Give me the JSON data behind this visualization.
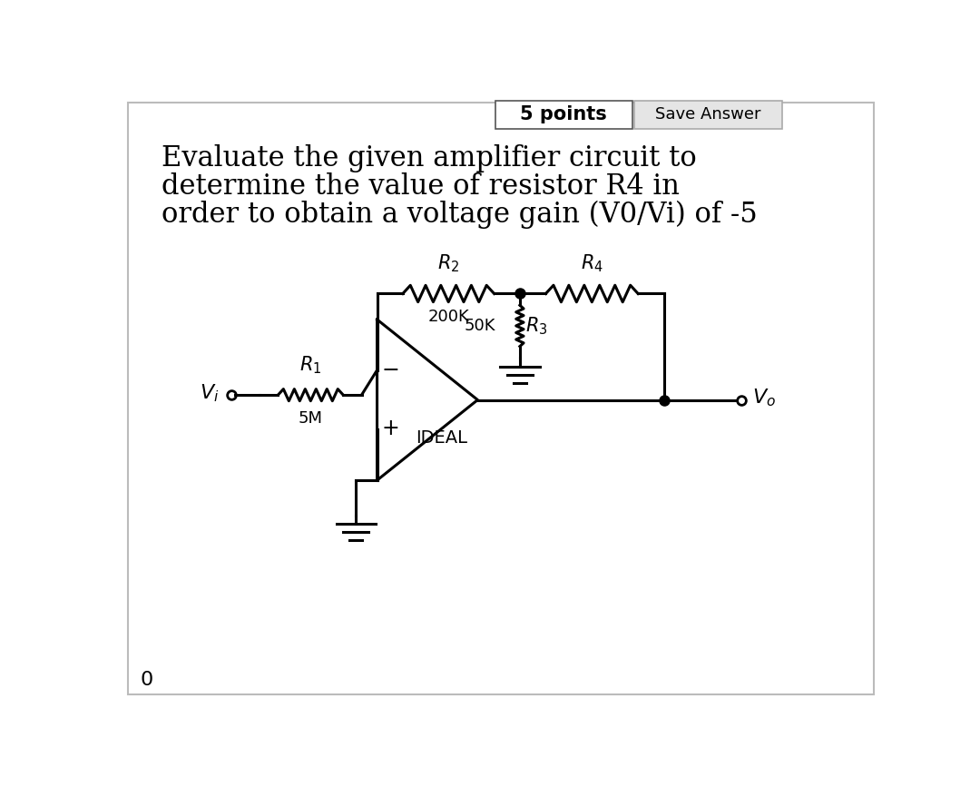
{
  "bg_color": "#ffffff",
  "title_line1": "Evaluate the given amplifier circuit to",
  "title_line2": "determine the value of resistor R4 in",
  "title_line3": "order to obtain a voltage gain (V0/Vi) of -5",
  "points_text": "5 points",
  "save_answer_text": "Save Answer",
  "bottom_label": "0",
  "R1_value": "5M",
  "R2_value": "200K",
  "R3_value": "50K",
  "IDEAL_label": "IDEAL",
  "lw": 2.2
}
